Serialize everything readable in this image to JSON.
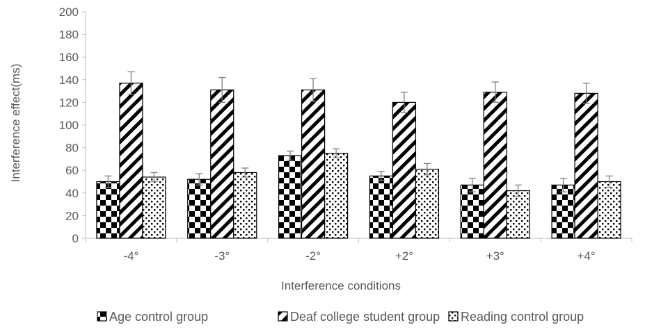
{
  "chart_data": {
    "type": "bar",
    "title": "",
    "xlabel": "Interference conditions",
    "ylabel": "Interference effect(ms)",
    "ylim": [
      0,
      200
    ],
    "yticks": [
      0,
      20,
      40,
      60,
      80,
      100,
      120,
      140,
      160,
      180,
      200
    ],
    "grid": false,
    "legend_position": "bottom",
    "categories": [
      "-4°",
      "-3°",
      "-2°",
      "+2°",
      "+3°",
      "+4°"
    ],
    "series": [
      {
        "name": "Age control group",
        "pattern": "checker",
        "values": [
          50,
          52,
          73,
          55,
          47,
          47
        ],
        "errors": [
          5,
          5,
          4,
          4,
          6,
          6
        ]
      },
      {
        "name": "Deaf college student group",
        "pattern": "diagonal",
        "values": [
          137,
          131,
          131,
          120,
          129,
          128
        ],
        "errors": [
          10,
          11,
          10,
          9,
          9,
          9
        ]
      },
      {
        "name": "Reading control group",
        "pattern": "dots",
        "values": [
          54,
          58,
          75,
          61,
          42,
          50
        ],
        "errors": [
          4,
          4,
          4,
          5,
          5,
          5
        ]
      }
    ],
    "colors": {
      "ink": "#000000",
      "paper": "#ffffff",
      "text": "#595959",
      "axis": "#bfbfbf",
      "error": "#7f7f7f"
    }
  }
}
